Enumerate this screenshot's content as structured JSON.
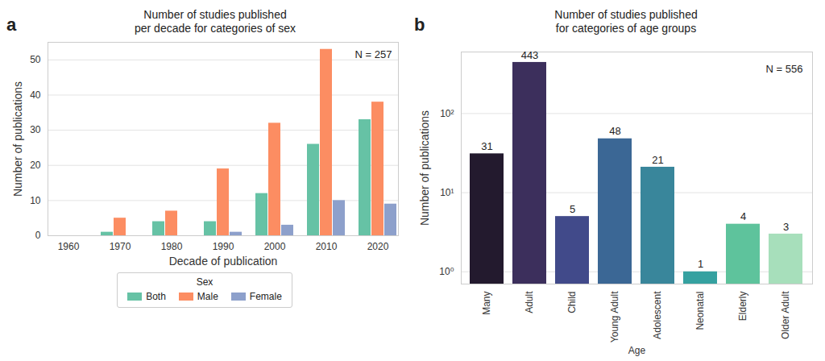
{
  "chart_data": [
    {
      "type": "bar",
      "label": "a",
      "title": "Number of studies published\nper decade for categories of sex",
      "annotations": [
        "N = 257"
      ],
      "x_label": "Decade of publication",
      "y_label": "Number of publications",
      "categories": [
        "1960",
        "1970",
        "1980",
        "1990",
        "2000",
        "2010",
        "2020"
      ],
      "series": [
        {
          "name": "Both",
          "color": "#66c2a5",
          "values": [
            0,
            1,
            4,
            4,
            12,
            26,
            33
          ]
        },
        {
          "name": "Male",
          "color": "#fc8d62",
          "values": [
            0,
            5,
            7,
            19,
            32,
            53,
            38
          ]
        },
        {
          "name": "Female",
          "color": "#8da0cb",
          "values": [
            0,
            0,
            0,
            1,
            3,
            10,
            9
          ]
        }
      ],
      "ylim": [
        0,
        55
      ],
      "yticks": [
        0,
        10,
        20,
        30,
        40,
        50
      ],
      "grid": true,
      "legend": "bottom",
      "legend_title": "Sex"
    },
    {
      "type": "bar",
      "label": "b",
      "title": "Number of studies published\nfor categories of age groups",
      "annotations": [
        "N = 556"
      ],
      "x_label": "Age",
      "y_label": "Number of publications",
      "categories": [
        "Many",
        "Adult",
        "Child",
        "Young Adult",
        "Adolescent",
        "Neonatal",
        "Elderly",
        "Older Adult"
      ],
      "values": [
        31,
        443,
        5,
        48,
        21,
        1,
        4,
        3
      ],
      "colors": [
        "#231a2e",
        "#3c2f5c",
        "#414a8a",
        "#3b6795",
        "#39869b",
        "#35a1a0",
        "#5ec39c",
        "#a7dfbb"
      ],
      "log": "y",
      "ylim": [
        0.7,
        600
      ],
      "yticks": [
        {
          "value": 1,
          "label": "10⁰"
        },
        {
          "value": 10,
          "label": "10¹"
        },
        {
          "value": 100,
          "label": "10²"
        }
      ],
      "grid": true,
      "data_labels": true
    }
  ]
}
